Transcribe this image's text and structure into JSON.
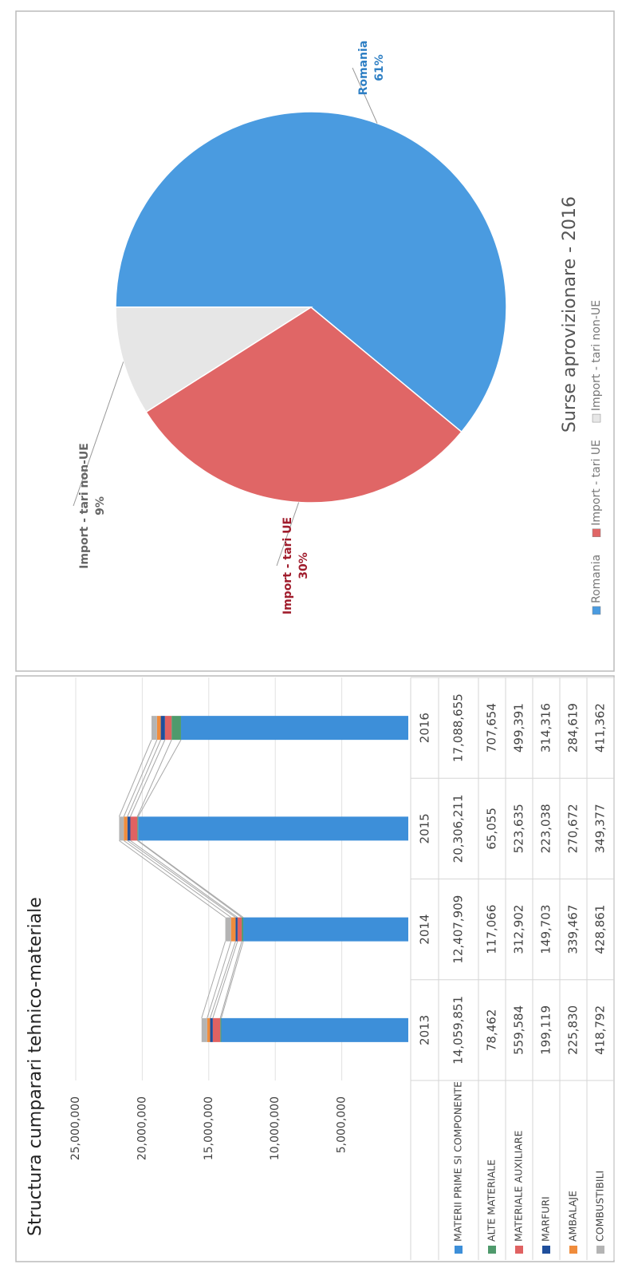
{
  "chart_data": [
    {
      "type": "bar",
      "stacked": true,
      "title": "Structura cumparari tehnico-materiale",
      "categories": [
        "2013",
        "2014",
        "2015",
        "2016"
      ],
      "series": [
        {
          "name": "MATERII PRIME SI COMPONENTE",
          "color": "#3d8fd9",
          "values": [
            14059851,
            12407909,
            20306211,
            17088655
          ],
          "value_labels": [
            "14,059,851",
            "12,407,909",
            "20,306,211",
            "17,088,655"
          ]
        },
        {
          "name": "ALTE MATERIALE",
          "color": "#4f9a6c",
          "values": [
            78462,
            117066,
            65055,
            707654
          ],
          "value_labels": [
            "78,462",
            "117,066",
            "65,055",
            "707,654"
          ]
        },
        {
          "name": "MATERIALE AUXILIARE",
          "color": "#e06262",
          "values": [
            559584,
            312902,
            523635,
            499391
          ],
          "value_labels": [
            "559,584",
            "312,902",
            "523,635",
            "499,391"
          ]
        },
        {
          "name": "MARFURI",
          "color": "#1f4f9c",
          "values": [
            199119,
            149703,
            223038,
            314316
          ],
          "value_labels": [
            "199,119",
            "149,703",
            "223,038",
            "314,316"
          ]
        },
        {
          "name": "AMBALAJE",
          "color": "#f08c3c",
          "values": [
            225830,
            339467,
            270672,
            284619
          ],
          "value_labels": [
            "225,830",
            "339,467",
            "270,672",
            "284,619"
          ]
        },
        {
          "name": "COMBUSTIBILI",
          "color": "#b4b4b4",
          "values": [
            418792,
            428861,
            349377,
            411362
          ],
          "value_labels": [
            "418,792",
            "428,861",
            "349,377",
            "411,362"
          ]
        }
      ],
      "ylim": [
        0,
        25000000
      ],
      "yticks": [
        {
          "value": 5000000,
          "label": "5,000,000"
        },
        {
          "value": 10000000,
          "label": "10,000,000"
        },
        {
          "value": 15000000,
          "label": "15,000,000"
        },
        {
          "value": 20000000,
          "label": "20,000,000"
        },
        {
          "value": 25000000,
          "label": "25,000,000"
        }
      ],
      "grid": true
    },
    {
      "type": "pie",
      "title": "Surse aprovizionare - 2016",
      "categories": [
        "Romania",
        "Import - tari UE",
        "Import - tari non-UE"
      ],
      "values": [
        61,
        30,
        9
      ],
      "value_labels": [
        "61%",
        "30%",
        "9%"
      ],
      "colors": [
        "#4a9be0",
        "#e06666",
        "#e6e6e6"
      ],
      "label_colors": [
        "#2e7fc4",
        "#a01c2c",
        "#666666"
      ],
      "legend": "bottom"
    }
  ]
}
